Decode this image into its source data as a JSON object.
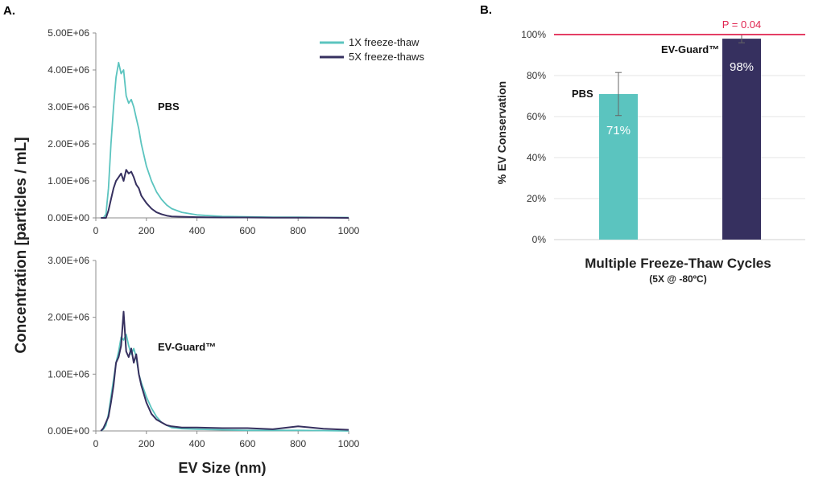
{
  "panel_a_label": "A.",
  "panel_b_label": "B.",
  "shared_ylabel": "Concentration [particles / mL]",
  "shared_xlabel": "EV Size (nm)",
  "colors": {
    "teal": "#5BC4BF",
    "navy": "#36305F",
    "pvalue": "#E0234F"
  },
  "chart_data": [
    {
      "id": "pbs",
      "type": "line",
      "panel": "A (top)",
      "annotation": "PBS",
      "xlim": [
        0,
        1000
      ],
      "ylim": [
        0,
        5000000
      ],
      "xticks": [
        "0",
        "200",
        "400",
        "600",
        "800",
        "1000"
      ],
      "yticks": [
        "0.00E+00",
        "1.00E+06",
        "2.00E+06",
        "3.00E+06",
        "4.00E+06",
        "5.00E+06"
      ],
      "legend_position": "top-right",
      "series": [
        {
          "name": "1X freeze-thaw",
          "color": "#5BC4BF",
          "x": [
            20,
            30,
            40,
            50,
            60,
            70,
            80,
            90,
            100,
            110,
            120,
            130,
            140,
            150,
            160,
            170,
            180,
            200,
            220,
            240,
            260,
            280,
            300,
            340,
            400,
            500,
            600,
            700,
            800,
            900,
            1000
          ],
          "y": [
            0,
            0,
            100000,
            800000,
            2000000,
            3000000,
            3800000,
            4200000,
            3900000,
            4000000,
            3300000,
            3100000,
            3200000,
            3000000,
            2700000,
            2400000,
            2000000,
            1400000,
            1000000,
            700000,
            500000,
            350000,
            250000,
            150000,
            80000,
            40000,
            30000,
            20000,
            20000,
            10000,
            10000
          ]
        },
        {
          "name": "5X freeze-thaws",
          "color": "#36305F",
          "x": [
            20,
            30,
            40,
            50,
            60,
            70,
            80,
            90,
            100,
            110,
            120,
            130,
            140,
            150,
            160,
            170,
            180,
            200,
            220,
            240,
            260,
            280,
            300,
            340,
            400,
            500,
            600,
            700,
            800,
            900,
            1000
          ],
          "y": [
            0,
            0,
            0,
            200000,
            500000,
            800000,
            1000000,
            1100000,
            1200000,
            1000000,
            1300000,
            1200000,
            1250000,
            1100000,
            900000,
            800000,
            600000,
            400000,
            250000,
            150000,
            100000,
            60000,
            40000,
            30000,
            20000,
            10000,
            10000,
            5000,
            5000,
            5000,
            0
          ]
        }
      ]
    },
    {
      "id": "evguard",
      "type": "line",
      "panel": "A (bottom)",
      "annotation": "EV-Guard™",
      "xlim": [
        0,
        1000
      ],
      "ylim": [
        0,
        3000000
      ],
      "xticks": [
        "0",
        "200",
        "400",
        "600",
        "800",
        "1000"
      ],
      "yticks": [
        "0.00E+00",
        "1.00E+06",
        "2.00E+06",
        "3.00E+06"
      ],
      "series": [
        {
          "name": "1X freeze-thaw",
          "color": "#5BC4BF",
          "x": [
            20,
            30,
            40,
            50,
            60,
            70,
            80,
            90,
            100,
            110,
            120,
            130,
            140,
            150,
            160,
            170,
            180,
            200,
            220,
            240,
            260,
            280,
            300,
            340,
            400,
            500,
            600,
            700,
            800,
            900,
            1000
          ],
          "y": [
            0,
            30000,
            100000,
            300000,
            600000,
            900000,
            1200000,
            1400000,
            1650000,
            1600000,
            1700000,
            1500000,
            1350000,
            1450000,
            1300000,
            1000000,
            850000,
            600000,
            400000,
            250000,
            150000,
            100000,
            60000,
            40000,
            30000,
            20000,
            10000,
            10000,
            10000,
            5000,
            0
          ]
        },
        {
          "name": "5X freeze-thaws",
          "color": "#36305F",
          "x": [
            20,
            30,
            40,
            50,
            60,
            70,
            80,
            90,
            100,
            110,
            120,
            130,
            140,
            150,
            160,
            170,
            180,
            200,
            220,
            240,
            260,
            280,
            300,
            340,
            400,
            500,
            600,
            700,
            800,
            900,
            1000
          ],
          "y": [
            0,
            50000,
            150000,
            250000,
            500000,
            800000,
            1200000,
            1300000,
            1500000,
            2100000,
            1400000,
            1300000,
            1450000,
            1200000,
            1350000,
            1000000,
            800000,
            500000,
            300000,
            200000,
            150000,
            100000,
            80000,
            60000,
            60000,
            50000,
            50000,
            30000,
            80000,
            40000,
            20000
          ]
        }
      ]
    },
    {
      "id": "conservation",
      "type": "bar",
      "panel": "B",
      "categories": [
        "PBS",
        "EV-Guard™"
      ],
      "values": [
        71,
        98
      ],
      "value_labels": [
        "71%",
        "98%"
      ],
      "error_bars": [
        10.5,
        2
      ],
      "bar_colors": [
        "#5BC4BF",
        "#36305F"
      ],
      "ylabel": "% EV  Conservation",
      "xlabel": "Multiple Freeze-Thaw Cycles",
      "xlabel_sub": "(5X @ -80ºC)",
      "ylim": [
        0,
        100
      ],
      "yticks": [
        "0%",
        "20%",
        "40%",
        "60%",
        "80%",
        "100%"
      ],
      "reference_line": {
        "value": 100,
        "label": "P = 0.04",
        "color": "#E0234F"
      }
    }
  ]
}
